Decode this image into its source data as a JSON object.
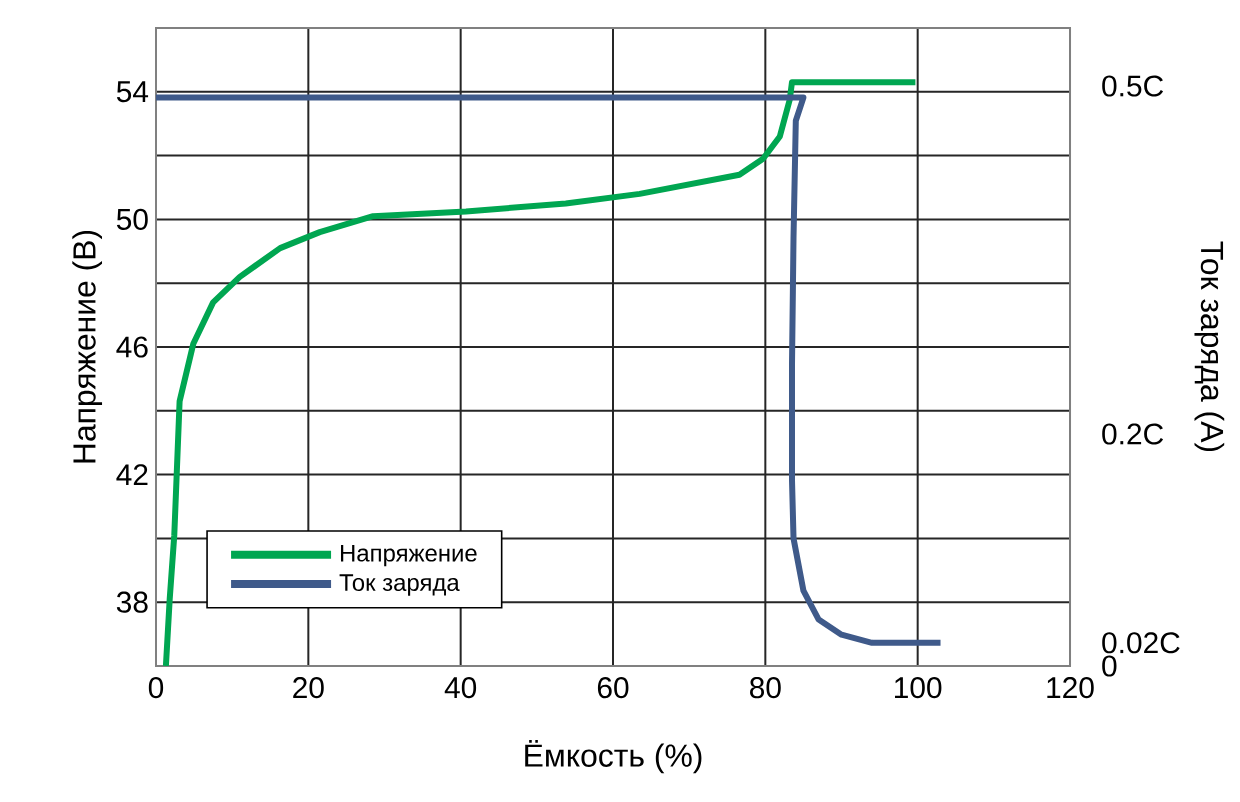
{
  "chart_data": {
    "type": "line",
    "xlabel": "Ёмкость (%)",
    "ylabel": "Напряжение (В)",
    "y2label": "Ток заряда (А)",
    "xlim": [
      0,
      120
    ],
    "xticks": [
      0,
      20,
      40,
      60,
      80,
      100,
      120
    ],
    "ylim": [
      36,
      56
    ],
    "yticks": [
      {
        "value": 36,
        "label": null
      },
      38,
      {
        "value": 40,
        "label": null
      },
      42,
      {
        "value": 44,
        "label": null
      },
      46,
      {
        "value": 48,
        "label": null
      },
      50,
      {
        "value": 52,
        "label": null
      },
      54,
      {
        "value": 56,
        "label": null
      }
    ],
    "y2lim": [
      0,
      0.55
    ],
    "y2ticks": [
      0,
      {
        "value": 0.02,
        "label": "0.02C"
      },
      {
        "value": 0.2,
        "label": "0.2C"
      },
      {
        "value": 0.5,
        "label": "0.5C"
      }
    ],
    "grid": true,
    "legend": "bottom left",
    "line_style": "solid",
    "series": [
      {
        "name": "Напряжение",
        "color": "#00a651",
        "x": [
          1.3,
          1.8,
          2.4,
          3.1,
          4.9,
          7.5,
          11,
          16.3,
          21.5,
          28.5,
          40.7,
          53.8,
          63.5,
          76.6,
          79.7,
          81.9,
          83.2,
          83.5,
          99.7
        ],
        "values": [
          36,
          38.1,
          40.1,
          44.3,
          46.1,
          47.4,
          48.2,
          49.1,
          49.6,
          50.1,
          50.25,
          50.5,
          50.8,
          51.4,
          51.9,
          52.6,
          53.75,
          54.3,
          54.3
        ]
      },
      {
        "name": "Ток заряда",
        "color": "#3f5a8a",
        "axis": "y2",
        "x": [
          0,
          2.4,
          85,
          84,
          83.7,
          83.5,
          83.5,
          83.7,
          85,
          87,
          90,
          94,
          103
        ],
        "values": [
          0.49,
          0.49,
          0.49,
          0.47,
          0.37,
          0.26,
          0.16,
          0.11,
          0.065,
          0.04,
          0.027,
          0.02,
          0.02
        ]
      }
    ]
  }
}
